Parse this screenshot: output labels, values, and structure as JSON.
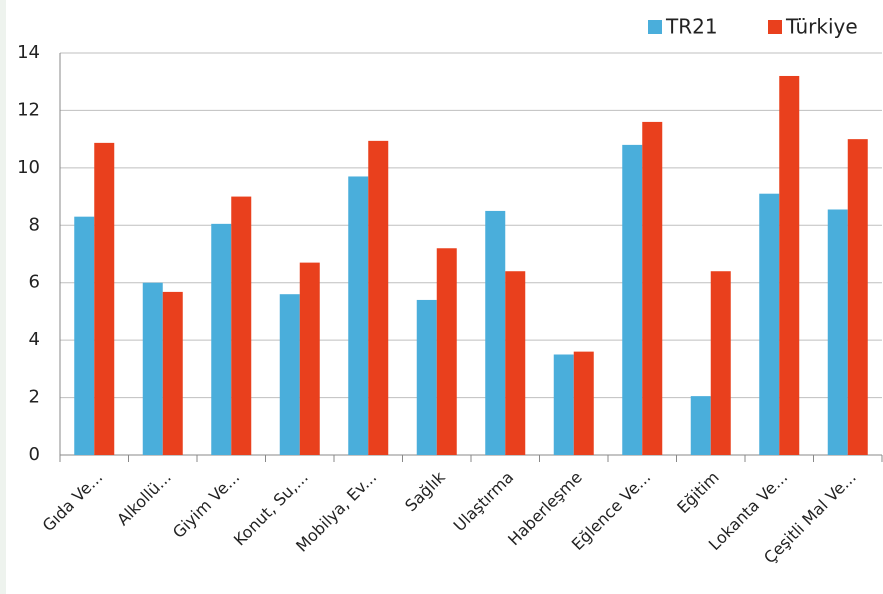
{
  "chart_data": {
    "type": "bar",
    "categories": [
      "Gıda Ve...",
      "Alkollü...",
      "Giyim Ve...",
      "Konut, Su,...",
      "Mobilya, Ev...",
      "Sağlık",
      "Ulaştırma",
      "Haberleşme",
      "Eğlence Ve...",
      "Eğitim",
      "Lokanta Ve...",
      "Çeşitli Mal Ve..."
    ],
    "series": [
      {
        "name": "TR21",
        "color": "#4aaedb",
        "values": [
          8.3,
          6.0,
          8.05,
          5.6,
          9.7,
          5.4,
          8.5,
          3.5,
          10.8,
          2.05,
          9.1,
          8.55
        ]
      },
      {
        "name": "Türkiye",
        "color": "#e9401d",
        "values": [
          10.87,
          5.68,
          9.0,
          6.7,
          10.94,
          7.2,
          6.4,
          3.6,
          11.6,
          6.4,
          13.2,
          11.0
        ]
      }
    ],
    "ylim": [
      0,
      14
    ],
    "yticks": [
      0,
      2,
      4,
      6,
      8,
      10,
      12,
      14
    ],
    "grid": true,
    "legend": "top-right"
  }
}
